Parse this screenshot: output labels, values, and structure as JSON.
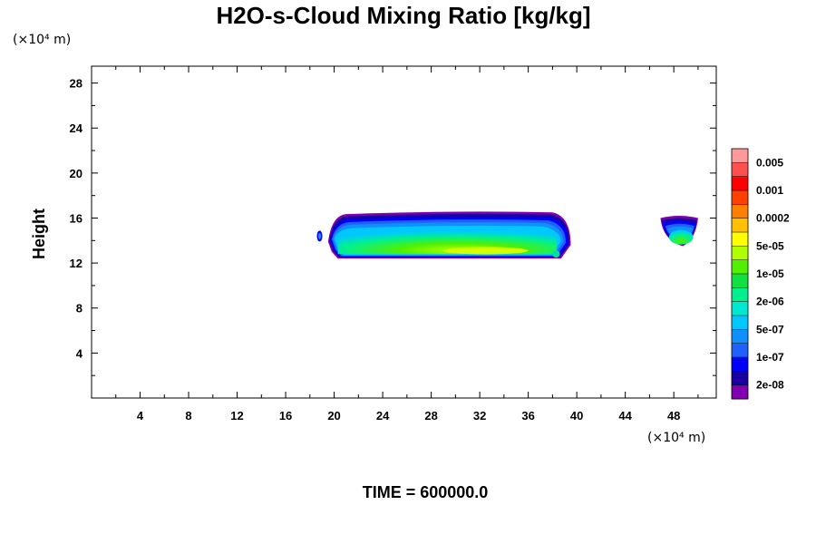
{
  "chart_data": {
    "type": "heatmap",
    "title": "H2O-s-Cloud Mixing Ratio [kg/kg]",
    "xlabel": "",
    "ylabel": "Height",
    "x_unit": "(×10⁴ m)",
    "y_unit": "(×10⁴ m)",
    "xlim": [
      0,
      51.5
    ],
    "ylim": [
      0,
      29.5
    ],
    "x_ticks": [
      4,
      8,
      12,
      16,
      20,
      24,
      28,
      32,
      36,
      40,
      44,
      48
    ],
    "x_tick_labels": [
      "4",
      "8",
      "12",
      "16",
      "20",
      "24",
      "28",
      "32",
      "36",
      "40",
      "44",
      "48"
    ],
    "y_ticks": [
      4,
      8,
      12,
      16,
      20,
      24,
      28
    ],
    "y_tick_labels": [
      "4",
      "8",
      "12",
      "16",
      "20",
      "24",
      "28"
    ],
    "grid": false,
    "colorbar": {
      "colors": [
        "#8000b0",
        "#1a00a0",
        "#0000ff",
        "#2060ff",
        "#1090ff",
        "#00c8ff",
        "#00e8d0",
        "#00f090",
        "#10e040",
        "#50f000",
        "#b0ff00",
        "#ffff00",
        "#ffc000",
        "#ff8000",
        "#ff4000",
        "#ff0000",
        "#ff5050",
        "#ff9898"
      ],
      "labels": [
        "2e-08",
        "1e-07",
        "5e-07",
        "2e-06",
        "1e-05",
        "5e-05",
        "0.0002",
        "0.001",
        "0.005"
      ],
      "label_positions": [
        1,
        3,
        5,
        7,
        9,
        11,
        13,
        15,
        17
      ]
    },
    "cloud_regions": [
      {
        "x_range": [
          18.5,
          39.5
        ],
        "y_range": [
          12.5,
          16.5
        ],
        "max_value": "5e-05",
        "core_x": [
          28,
          36
        ],
        "core_y": [
          12.5,
          14
        ]
      },
      {
        "x_range": [
          47,
          50
        ],
        "y_range": [
          13.5,
          16.3
        ],
        "max_value": "5e-05",
        "core_x": [
          48,
          49.2
        ],
        "core_y": [
          13.8,
          15
        ]
      }
    ]
  },
  "footer": {
    "time_label": "TIME = 600000.0"
  }
}
